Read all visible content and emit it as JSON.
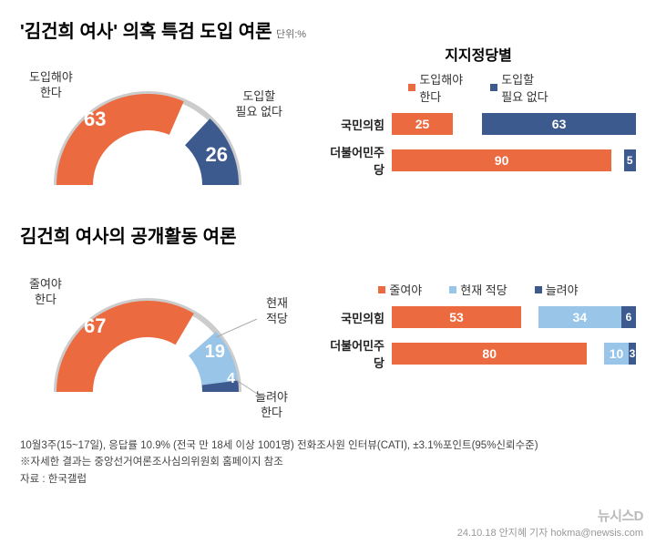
{
  "title_main": "'김건희 여사' 의혹 특검 도입 여론",
  "unit_label": "단위:%",
  "colors": {
    "orange": "#eb6a3f",
    "navy": "#3d5a8f",
    "lightblue": "#98c5e8",
    "white_gap": "#ffffff",
    "gray_ring": "#cccccc",
    "text": "#333333"
  },
  "gauge1": {
    "left_label": "도입해야\n한다",
    "left_value": 63,
    "right_label": "도입할\n필요 없다",
    "right_value": 26,
    "left_color": "#eb6a3f",
    "right_color": "#3d5a8f"
  },
  "by_party_title": "지지정당별",
  "bars1": {
    "legend": [
      {
        "label": "도입해야\n한다",
        "color": "#eb6a3f"
      },
      {
        "label": "도입할\n필요 없다",
        "color": "#3d5a8f"
      }
    ],
    "rows": [
      {
        "party": "국민의힘",
        "segments": [
          {
            "value": 25,
            "color": "#eb6a3f"
          },
          {
            "value": 12,
            "color": "transparent",
            "gap": true
          },
          {
            "value": 63,
            "color": "#3d5a8f"
          }
        ]
      },
      {
        "party": "더불어민주당",
        "segments": [
          {
            "value": 90,
            "color": "#eb6a3f"
          },
          {
            "value": 5,
            "color": "transparent",
            "gap": true
          },
          {
            "value": 5,
            "color": "#3d5a8f"
          }
        ]
      }
    ]
  },
  "title2": "김건희 여사의 공개활동 여론",
  "gauge2": {
    "left_label": "줄여야\n한다",
    "left_value": 67,
    "mid_label": "현재\n적당",
    "mid_value": 19,
    "right_label": "늘려야\n한다",
    "right_value": 4,
    "left_color": "#eb6a3f",
    "mid_color": "#98c5e8",
    "right_color": "#3d5a8f"
  },
  "bars2": {
    "legend": [
      {
        "label": "줄여야",
        "color": "#eb6a3f"
      },
      {
        "label": "현재 적당",
        "color": "#98c5e8"
      },
      {
        "label": "늘려야",
        "color": "#3d5a8f"
      }
    ],
    "rows": [
      {
        "party": "국민의힘",
        "segments": [
          {
            "value": 53,
            "color": "#eb6a3f"
          },
          {
            "value": 7,
            "color": "transparent",
            "gap": true
          },
          {
            "value": 34,
            "color": "#98c5e8"
          },
          {
            "value": 6,
            "color": "#3d5a8f"
          }
        ]
      },
      {
        "party": "더불어민주당",
        "segments": [
          {
            "value": 80,
            "color": "#eb6a3f"
          },
          {
            "value": 7,
            "color": "transparent",
            "gap": true
          },
          {
            "value": 10,
            "color": "#98c5e8"
          },
          {
            "value": 3,
            "color": "#3d5a8f"
          }
        ]
      }
    ]
  },
  "footnote1": "10월3주(15~17일), 응답률 10.9% (전국 만 18세 이상 1001명) 전화조사원 인터뷰(CATI), ±3.1%포인트(95%신뢰수준)",
  "footnote2": "※자세한 결과는 중앙선거여론조사심의위원회 홈페이지 참조",
  "footnote3": "자료 : 한국갤럽",
  "watermark": "뉴시스D",
  "credit": "24.10.18 안지혜 기자 hokma@newsis.com"
}
